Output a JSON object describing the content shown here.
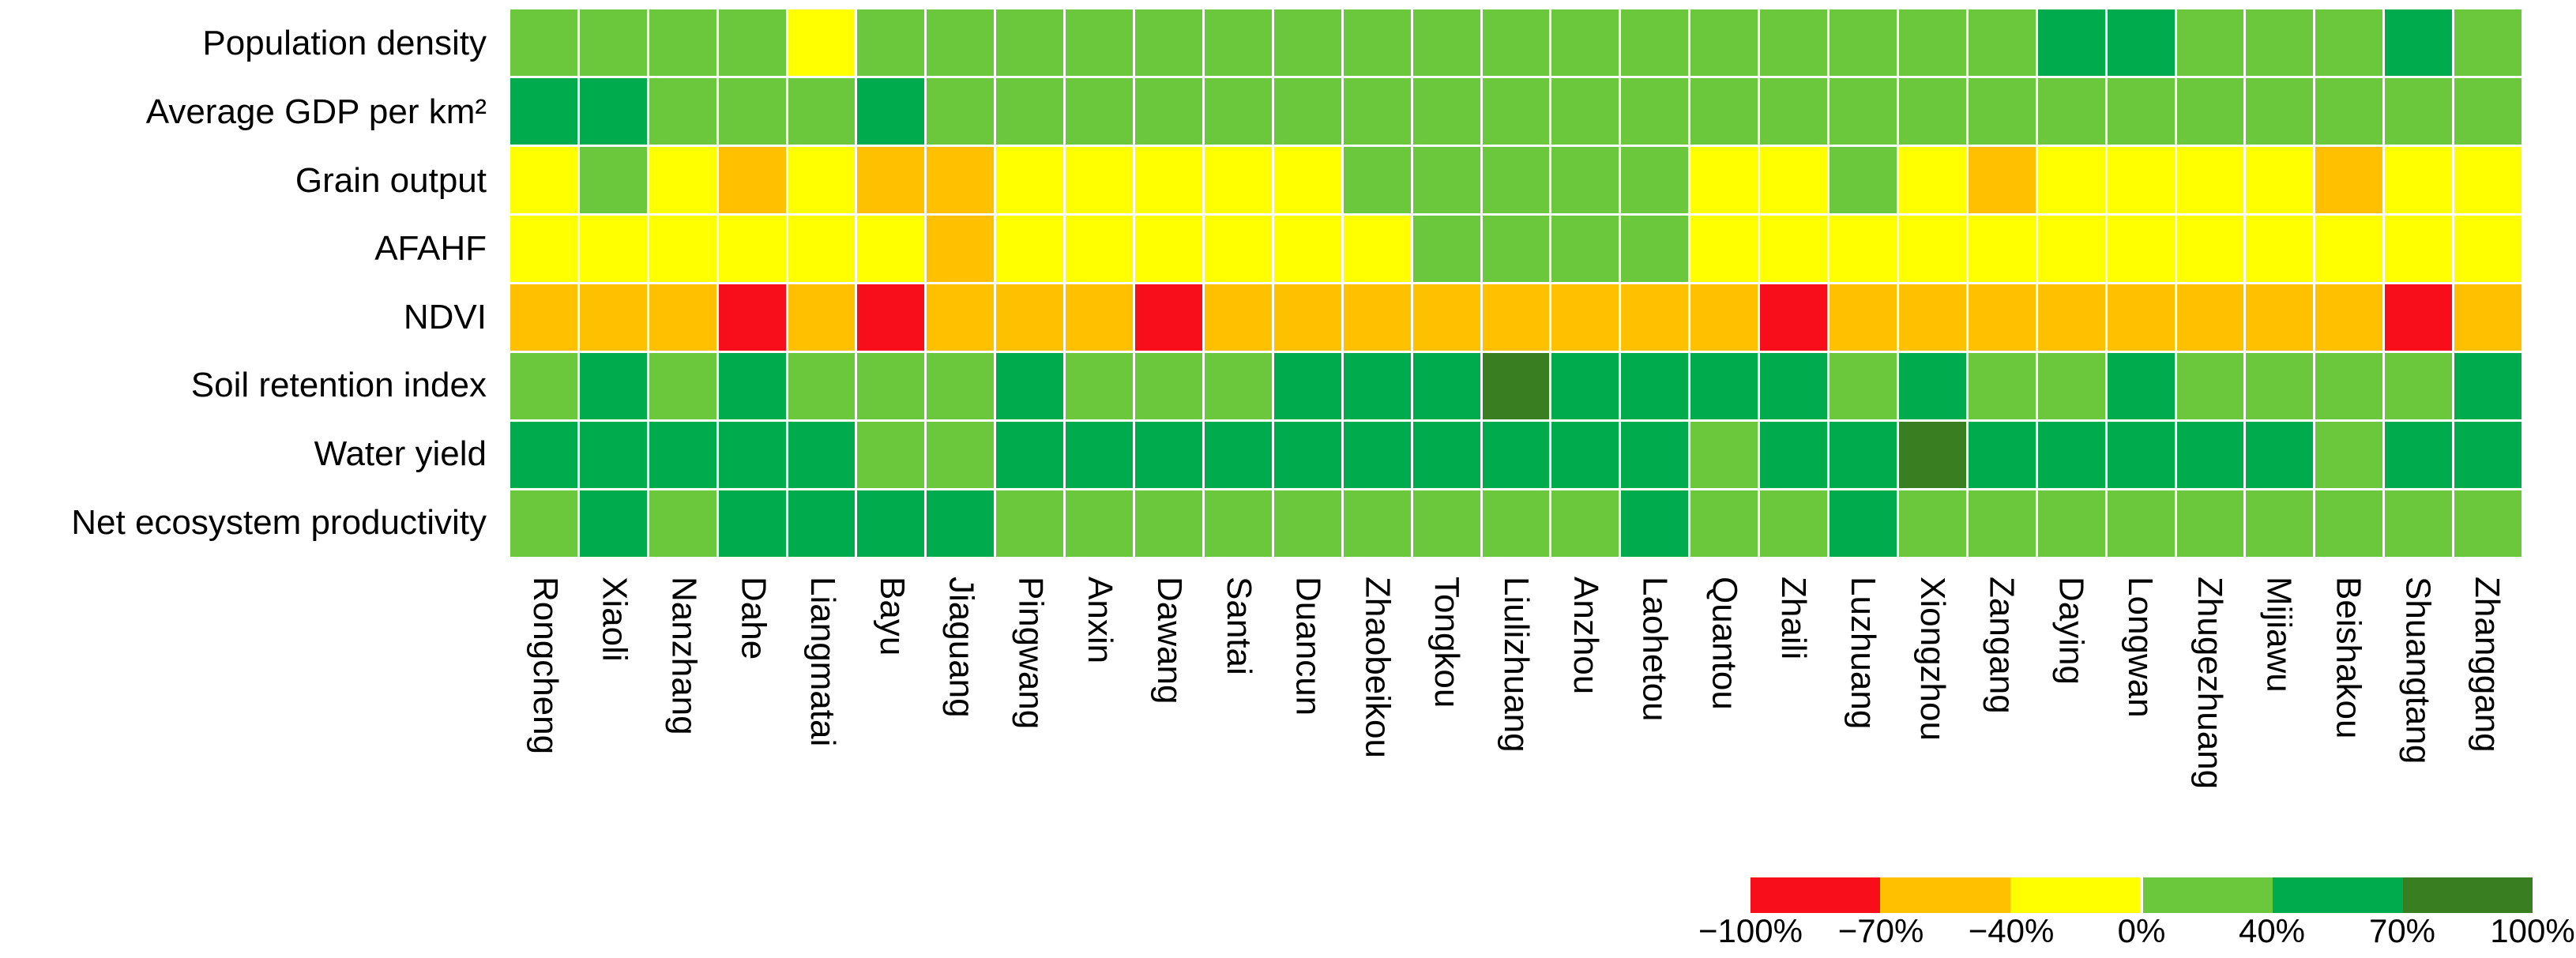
{
  "chart_data": {
    "type": "heatmap",
    "title": "",
    "unit": "%",
    "legend_position": "bottom-right",
    "grid_line_color": "#FFFFFF",
    "columns": [
      "Rongcheng",
      "Xiaoli",
      "Nanzhang",
      "Dahe",
      "Liangmatai",
      "Bayu",
      "Jiaguang",
      "Pingwang",
      "Anxin",
      "Dawang",
      "Santai",
      "Duancun",
      "Zhaobeikou",
      "Tongkou",
      "Liulizhuang",
      "Anzhou",
      "Laohetou",
      "Quantou",
      "Zhaili",
      "Luzhuang",
      "Xiongzhou",
      "Zangang",
      "Daying",
      "Longwan",
      "Zhugezhuang",
      "Mijiawu",
      "Beishakou",
      "Shuangtang",
      "Zhanggang"
    ],
    "rows": [
      {
        "label": "Population density",
        "cells": [
          "LG",
          "LG",
          "LG",
          "LG",
          "Y",
          "LG",
          "LG",
          "LG",
          "LG",
          "LG",
          "LG",
          "LG",
          "LG",
          "LG",
          "LG",
          "LG",
          "LG",
          "LG",
          "LG",
          "LG",
          "LG",
          "LG",
          "G",
          "G",
          "LG",
          "LG",
          "LG",
          "G",
          "LG"
        ]
      },
      {
        "label": "Average GDP per km²",
        "cells": [
          "G",
          "G",
          "LG",
          "LG",
          "LG",
          "G",
          "LG",
          "LG",
          "LG",
          "LG",
          "LG",
          "LG",
          "LG",
          "LG",
          "LG",
          "LG",
          "LG",
          "LG",
          "LG",
          "LG",
          "LG",
          "LG",
          "LG",
          "LG",
          "LG",
          "LG",
          "LG",
          "LG",
          "LG"
        ]
      },
      {
        "label": "Grain output",
        "cells": [
          "Y",
          "LG",
          "Y",
          "O",
          "Y",
          "O",
          "O",
          "Y",
          "Y",
          "Y",
          "Y",
          "Y",
          "LG",
          "LG",
          "LG",
          "LG",
          "LG",
          "Y",
          "Y",
          "LG",
          "Y",
          "O",
          "Y",
          "Y",
          "Y",
          "Y",
          "O",
          "Y",
          "Y"
        ]
      },
      {
        "label": "AFAHF",
        "cells": [
          "Y",
          "Y",
          "Y",
          "Y",
          "Y",
          "Y",
          "O",
          "Y",
          "Y",
          "Y",
          "Y",
          "Y",
          "Y",
          "LG",
          "LG",
          "LG",
          "LG",
          "Y",
          "Y",
          "Y",
          "Y",
          "Y",
          "Y",
          "Y",
          "Y",
          "Y",
          "Y",
          "Y",
          "Y"
        ]
      },
      {
        "label": "NDVI",
        "cells": [
          "O",
          "O",
          "O",
          "R",
          "O",
          "R",
          "O",
          "O",
          "O",
          "R",
          "O",
          "O",
          "O",
          "O",
          "O",
          "O",
          "O",
          "O",
          "R",
          "O",
          "O",
          "O",
          "O",
          "O",
          "O",
          "O",
          "O",
          "R",
          "O"
        ]
      },
      {
        "label": "Soil retention index",
        "cells": [
          "LG",
          "G",
          "LG",
          "G",
          "LG",
          "LG",
          "LG",
          "G",
          "LG",
          "LG",
          "LG",
          "G",
          "G",
          "G",
          "DG",
          "G",
          "G",
          "G",
          "G",
          "LG",
          "G",
          "LG",
          "LG",
          "G",
          "LG",
          "LG",
          "LG",
          "LG",
          "G"
        ]
      },
      {
        "label": "Water yield",
        "cells": [
          "G",
          "G",
          "G",
          "G",
          "G",
          "LG",
          "LG",
          "G",
          "G",
          "G",
          "G",
          "G",
          "G",
          "G",
          "G",
          "G",
          "G",
          "LG",
          "G",
          "G",
          "DG",
          "G",
          "G",
          "G",
          "G",
          "G",
          "LG",
          "G",
          "G"
        ]
      },
      {
        "label": "Net ecosystem productivity",
        "cells": [
          "LG",
          "G",
          "LG",
          "G",
          "G",
          "G",
          "G",
          "LG",
          "LG",
          "LG",
          "LG",
          "LG",
          "LG",
          "LG",
          "LG",
          "LG",
          "G",
          "LG",
          "LG",
          "G",
          "LG",
          "LG",
          "LG",
          "LG",
          "LG",
          "LG",
          "LG",
          "LG",
          "LG"
        ]
      }
    ],
    "palette": {
      "R": {
        "color": "#F80D1B",
        "range": "−100% to −70%"
      },
      "O": {
        "color": "#FFC000",
        "range": "−70% to −40%"
      },
      "Y": {
        "color": "#FFFF00",
        "range": "−40% to 0%"
      },
      "LG": {
        "color": "#6BC83D",
        "range": "0% to 40%"
      },
      "G": {
        "color": "#00AB4E",
        "range": "40% to 70%"
      },
      "DG": {
        "color": "#3A7E22",
        "range": "70% to 100%"
      }
    },
    "legend": {
      "segments": [
        "R",
        "O",
        "Y",
        "LG",
        "G",
        "DG"
      ],
      "ticks": [
        "−100%",
        "−70%",
        "−40%",
        "0%",
        "40%",
        "70%",
        "100%"
      ]
    }
  }
}
